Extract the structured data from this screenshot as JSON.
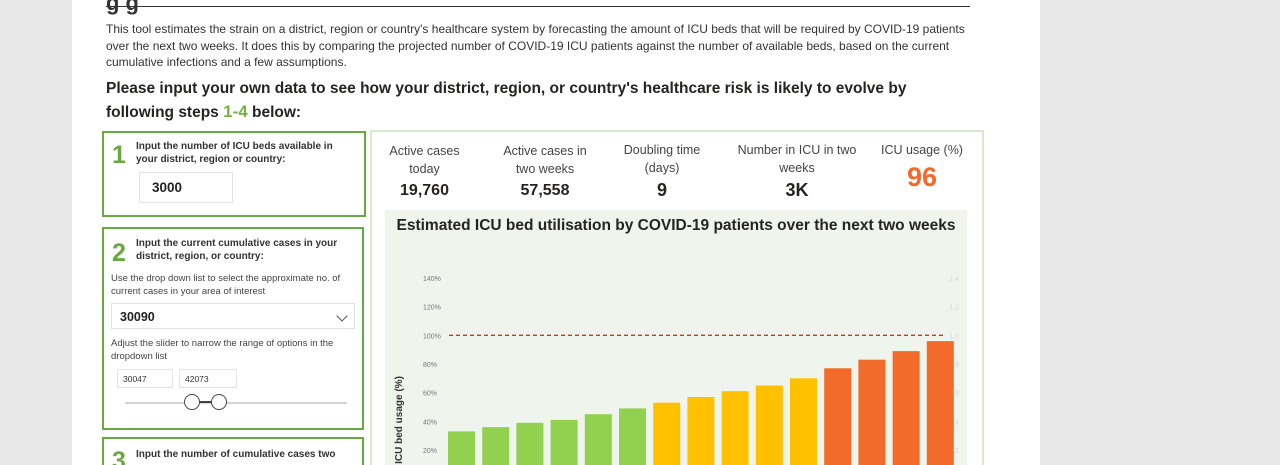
{
  "header": {
    "partial_title": "g g",
    "intro": "This tool estimates the strain on a district, region or country's healthcare system by forecasting the amount of ICU beds that will be required by COVID-19 patients over the next two weeks. It does this by comparing the projected number of COVID-19 ICU patients against the number of available beds, based on the current cumulative infections and a few assumptions.",
    "prompt_text": "Please input your own data to see how your district, region, or country's healthcare risk is likely to evolve by following steps ",
    "prompt_steps": "1-4",
    "prompt_suffix": " below:"
  },
  "step1": {
    "number": "1",
    "title": "Input the number of ICU beds available in your district, region or country:",
    "value": "3000"
  },
  "step2": {
    "number": "2",
    "title": "Input the current cumulative cases in your district, region, or country:",
    "help1": "Use the drop down list to select the approximate no. of current cases in your area of interest",
    "dropdown_value": "30090",
    "help2": "Adjust the slider to narrow the range of options in the dropdown list",
    "range_min": "30047",
    "range_max": "42073"
  },
  "step3": {
    "number": "3",
    "title": "Input the number of cumulative cases two"
  },
  "kpis": [
    {
      "label": "Active cases today",
      "value": "19,760"
    },
    {
      "label": "Active cases in two weeks",
      "value": "57,558"
    },
    {
      "label": "Doubling time (days)",
      "value": "9"
    },
    {
      "label": "Number in ICU in two weeks",
      "value": "3K"
    },
    {
      "label": "ICU usage (%)",
      "value": "96",
      "color": "#f26b2a"
    }
  ],
  "colors": {
    "green": "#92d050",
    "yellow": "#ffc000",
    "orange": "#f26b2a",
    "accent": "#6aa842",
    "threshold": "#c0392b"
  },
  "chart_data": {
    "type": "bar",
    "title": "Estimated ICU bed utilisation by COVID-19 patients over the next two weeks",
    "ylabel": "ICU bed usage (%)",
    "ylim": [
      0,
      140
    ],
    "yticks": [
      "20%",
      "40%",
      "60%",
      "80%",
      "100%",
      "120%",
      "140%"
    ],
    "yticks_secondary": [
      "0.2",
      "0.4",
      "0.6",
      "0.8",
      "1.0",
      "1.2",
      "1.4"
    ],
    "threshold": 100,
    "values": [
      33,
      36,
      39,
      41,
      45,
      49,
      53,
      57,
      61,
      65,
      70,
      77,
      83,
      89,
      96
    ],
    "bar_colors": [
      "green",
      "green",
      "green",
      "green",
      "green",
      "green",
      "yellow",
      "yellow",
      "yellow",
      "yellow",
      "yellow",
      "orange",
      "orange",
      "orange",
      "orange"
    ]
  }
}
